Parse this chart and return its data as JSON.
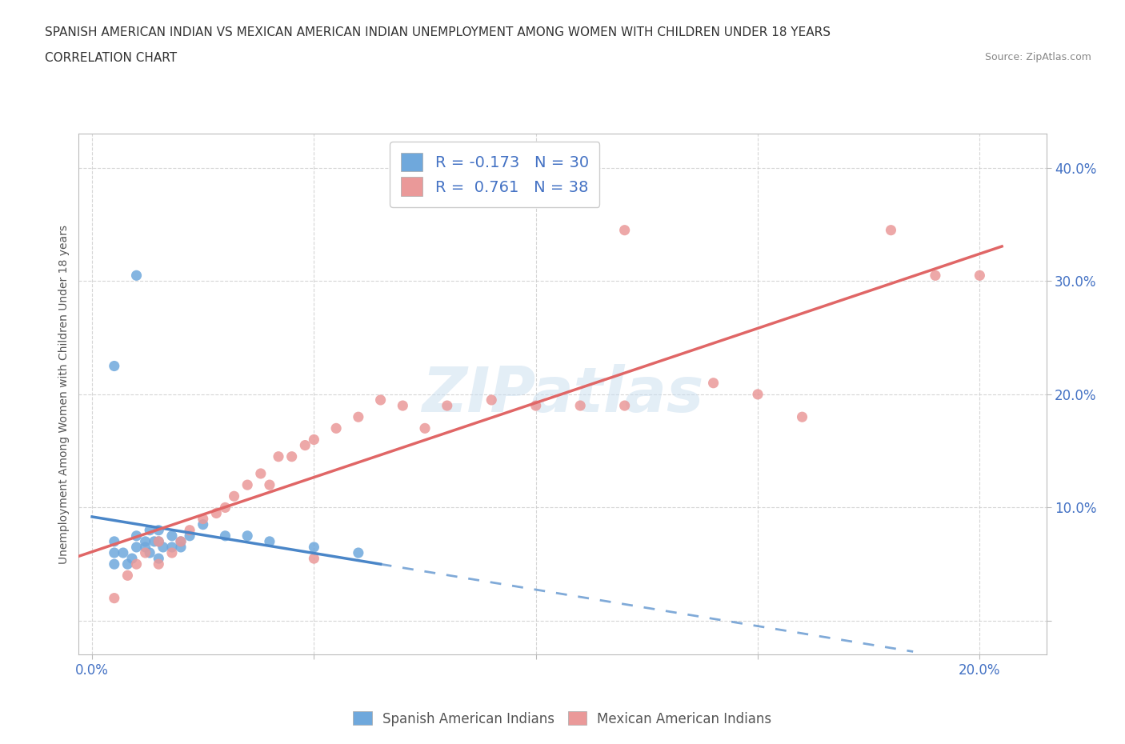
{
  "title_line1": "SPANISH AMERICAN INDIAN VS MEXICAN AMERICAN INDIAN UNEMPLOYMENT AMONG WOMEN WITH CHILDREN UNDER 18 YEARS",
  "title_line2": "CORRELATION CHART",
  "source": "Source: ZipAtlas.com",
  "ylabel_label": "Unemployment Among Women with Children Under 18 years",
  "xlim": [
    -0.003,
    0.215
  ],
  "ylim": [
    -0.03,
    0.43
  ],
  "blue_R": -0.173,
  "blue_N": 30,
  "pink_R": 0.761,
  "pink_N": 38,
  "blue_color": "#6fa8dc",
  "pink_color": "#ea9999",
  "blue_line_color": "#4a86c8",
  "pink_line_color": "#e06666",
  "watermark_text": "ZIPatlas",
  "blue_scatter_x": [
    0.005,
    0.005,
    0.005,
    0.007,
    0.008,
    0.009,
    0.01,
    0.01,
    0.012,
    0.012,
    0.013,
    0.013,
    0.014,
    0.015,
    0.015,
    0.015,
    0.016,
    0.018,
    0.018,
    0.02,
    0.02,
    0.022,
    0.025,
    0.03,
    0.035,
    0.04,
    0.05,
    0.06,
    0.005,
    0.01
  ],
  "blue_scatter_y": [
    0.05,
    0.06,
    0.07,
    0.06,
    0.05,
    0.055,
    0.065,
    0.075,
    0.065,
    0.07,
    0.06,
    0.08,
    0.07,
    0.055,
    0.07,
    0.08,
    0.065,
    0.065,
    0.075,
    0.065,
    0.07,
    0.075,
    0.085,
    0.075,
    0.075,
    0.07,
    0.065,
    0.06,
    0.225,
    0.305
  ],
  "pink_scatter_x": [
    0.005,
    0.008,
    0.01,
    0.012,
    0.015,
    0.015,
    0.018,
    0.02,
    0.022,
    0.025,
    0.028,
    0.03,
    0.032,
    0.035,
    0.038,
    0.04,
    0.042,
    0.045,
    0.048,
    0.05,
    0.05,
    0.055,
    0.06,
    0.065,
    0.07,
    0.075,
    0.08,
    0.09,
    0.1,
    0.11,
    0.12,
    0.14,
    0.15,
    0.16,
    0.18,
    0.19,
    0.2,
    0.12
  ],
  "pink_scatter_y": [
    0.02,
    0.04,
    0.05,
    0.06,
    0.05,
    0.07,
    0.06,
    0.07,
    0.08,
    0.09,
    0.095,
    0.1,
    0.11,
    0.12,
    0.13,
    0.12,
    0.145,
    0.145,
    0.155,
    0.16,
    0.055,
    0.17,
    0.18,
    0.195,
    0.19,
    0.17,
    0.19,
    0.195,
    0.19,
    0.19,
    0.19,
    0.21,
    0.2,
    0.18,
    0.345,
    0.305,
    0.305,
    0.345
  ]
}
